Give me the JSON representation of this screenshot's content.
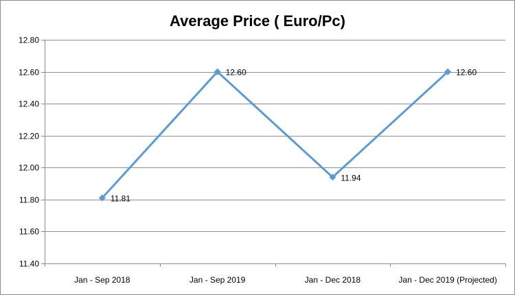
{
  "chart_data": {
    "type": "line",
    "title": "Average Price ( Euro/Pc)",
    "xlabel": "",
    "ylabel": "",
    "categories": [
      "Jan - Sep 2018",
      "Jan - Sep 2019",
      "Jan - Dec 2018",
      "Jan - Dec 2019 (Projected)"
    ],
    "series": [
      {
        "values": [
          11.81,
          12.6,
          11.94,
          12.6
        ],
        "data_labels": [
          "11.81",
          "12.60",
          "11.94",
          "12.60"
        ]
      }
    ],
    "ylim": [
      11.4,
      12.8
    ],
    "yticks": [
      "11.40",
      "11.60",
      "11.80",
      "12.00",
      "12.20",
      "12.40",
      "12.60",
      "12.80"
    ],
    "grid": true,
    "legend": "none",
    "colors": {
      "line": "#5b9bd5",
      "grid": "#8c8c8c",
      "axis": "#8c8c8c"
    }
  }
}
